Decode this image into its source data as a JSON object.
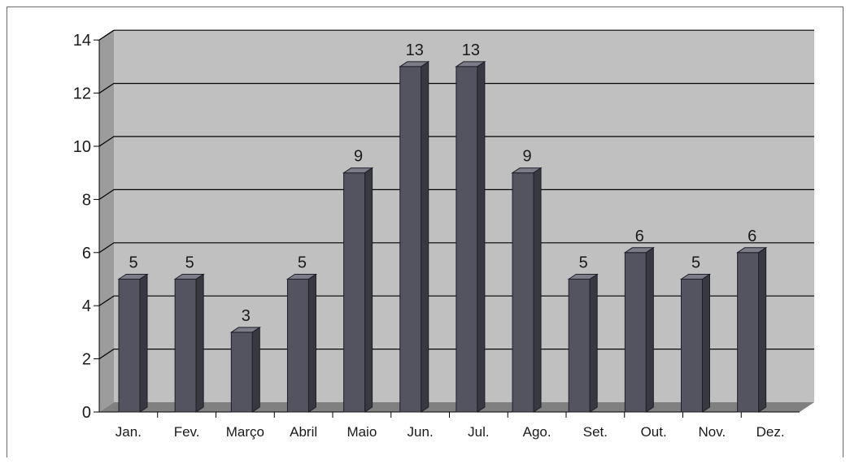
{
  "chart_data": {
    "type": "bar",
    "categories": [
      "Jan.",
      "Fev.",
      "Março",
      "Abril",
      "Maio",
      "Jun.",
      "Jul.",
      "Ago.",
      "Set.",
      "Out.",
      "Nov.",
      "Dez."
    ],
    "values": [
      5,
      5,
      3,
      5,
      9,
      13,
      13,
      9,
      5,
      6,
      5,
      6
    ],
    "data_labels": [
      "5",
      "5",
      "3",
      "5",
      "9",
      "13",
      "13",
      "9",
      "5",
      "6",
      "5",
      "6"
    ],
    "y_ticks": [
      "0",
      "2",
      "4",
      "6",
      "8",
      "10",
      "12",
      "14"
    ],
    "ylim": [
      0,
      14
    ],
    "title": "",
    "xlabel": "",
    "ylabel": "",
    "grid": true,
    "legend": "none",
    "style": "3d-column",
    "colors": {
      "bar_front": "#545460",
      "bar_top": "#7c7c88",
      "bar_side": "#383840",
      "bar_edge": "#1e1e28",
      "wall": "#c0c0c0",
      "wall_side": "#9c9c9c",
      "floor": "#808080",
      "gridline": "#000000"
    }
  }
}
